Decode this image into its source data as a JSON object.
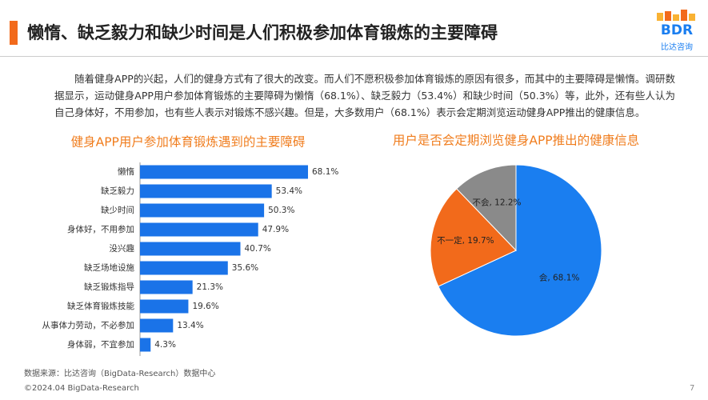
{
  "header": {
    "title": "懒惰、缺乏毅力和缺少时间是人们积极参加体育锻炼的主要障碍",
    "logo": "BDR",
    "logo_sub": "比达咨询"
  },
  "paragraph": "随着健身APP的兴起，人们的健身方式有了很大的改变。而人们不愿积极参加体育锻炼的原因有很多，而其中的主要障碍是懒惰。调研数据显示，运动健身APP用户参加体育锻炼的主要障碍为懒惰（68.1%）、缺乏毅力（53.4%）和缺少时间（50.3%）等，此外，还有些人认为自己身体好，不用参加，也有些人表示对锻炼不感兴趣。但是，大多数用户（68.1%）表示会定期浏览运动健身APP推出的健康信息。",
  "chart_data": [
    {
      "type": "bar",
      "orientation": "horizontal",
      "title": "健身APP用户参加体育锻炼遇到的主要障碍",
      "color": "#1a73e8",
      "categories": [
        "懒惰",
        "缺乏毅力",
        "缺少时间",
        "身体好，不用参加",
        "没兴趣",
        "缺乏场地设施",
        "缺乏锻炼指导",
        "缺乏体育锻炼技能",
        "从事体力劳动，不必参加",
        "身体弱，不宜参加"
      ],
      "values": [
        68.1,
        53.4,
        50.3,
        47.9,
        40.7,
        35.6,
        21.3,
        19.6,
        13.4,
        4.3
      ],
      "value_labels": [
        "68.1%",
        "53.4%",
        "50.3%",
        "47.9%",
        "40.7%",
        "35.6%",
        "21.3%",
        "19.6%",
        "13.4%",
        "4.3%"
      ]
    },
    {
      "type": "pie",
      "title": "用户是否会定期浏览健身APP推出的健康信息",
      "categories": [
        "会",
        "不一定",
        "不会"
      ],
      "values": [
        68.1,
        19.7,
        12.2
      ],
      "value_labels": [
        "会, 68.1%",
        "不一定, 19.7%",
        "不会, 12.2%"
      ],
      "colors": [
        "#1a7ef0",
        "#f26a1b",
        "#8a8a8a"
      ]
    }
  ],
  "footer": {
    "source": "数据来源：比达咨询（BigData-Research）数据中心",
    "copyright": "©2024.04 BigData-Research",
    "page": "7"
  }
}
